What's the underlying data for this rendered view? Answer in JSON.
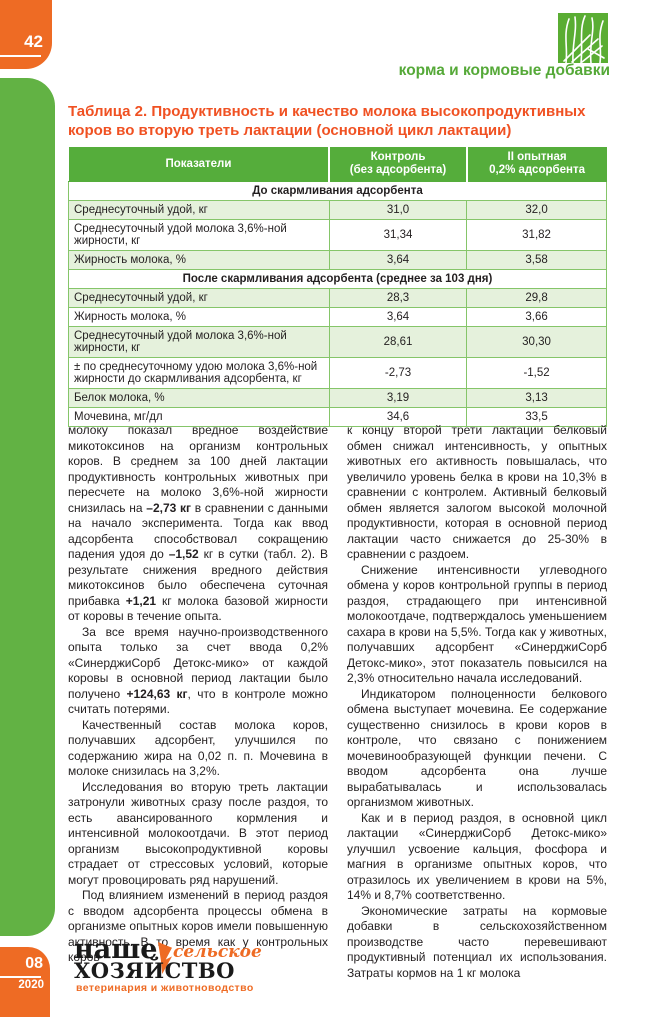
{
  "page": {
    "folio": "42",
    "issue": {
      "number": "08",
      "year": "2020"
    }
  },
  "header": {
    "rubric": "корма и кормовые добавки",
    "logo_icon": "grass-icon"
  },
  "colors": {
    "brand_orange": "#ee6b24",
    "title_orange": "#f05122",
    "brand_green": "#55ad3b",
    "sidebar_green": "#62b244",
    "row_light_green": "#e5f1dc"
  },
  "table": {
    "title": "Таблица 2. Продуктивность и качество молока высокопродуктивных коров во вторую треть лактации (основной цикл лактации)",
    "columns": [
      {
        "label": "Показатели",
        "sub": ""
      },
      {
        "label": "Контроль",
        "sub": "(без адсорбента)"
      },
      {
        "label": "II опытная",
        "sub": "0,2% адсорбента"
      }
    ],
    "sections": [
      {
        "header": "До скармливания адсорбента",
        "rows": [
          {
            "name": "Среднесуточный удой, кг",
            "control": "31,0",
            "experimental": "32,0"
          },
          {
            "name": "Среднесуточный удой молока 3,6%-ной жирности, кг",
            "control": "31,34",
            "experimental": "31,82"
          },
          {
            "name": "Жирность молока, %",
            "control": "3,64",
            "experimental": "3,58"
          }
        ]
      },
      {
        "header": "После скармливания адсорбента (среднее за 103 дня)",
        "rows": [
          {
            "name": "Среднесуточный удой, кг",
            "control": "28,3",
            "experimental": "29,8"
          },
          {
            "name": "Жирность молока, %",
            "control": "3,64",
            "experimental": "3,66"
          },
          {
            "name": "Среднесуточный удой молока 3,6%-ной жирности, кг",
            "control": "28,61",
            "experimental": "30,30"
          },
          {
            "name": "± по среднесуточному удою молока 3,6%-ной жирности до скармливания адсорбента, кг",
            "control": "-2,73",
            "experimental": "-1,52"
          },
          {
            "name": "Белок молока, %",
            "control": "3,19",
            "experimental": "3,13"
          },
          {
            "name": "Мочевина, мг/дл",
            "control": "34,6",
            "experimental": "33,5"
          }
        ]
      }
    ]
  },
  "article": {
    "left_column": [
      {
        "indent": false,
        "parts": [
          {
            "text": "молоку показал вредное воздействие микотоксинов на организм контрольных коров. В среднем за 100 дней лактации продуктивность контрольных животных при пересчете на молоко 3,6%-ной жирности снизилась на ",
            "bold": false
          },
          {
            "text": "–2,73 кг",
            "bold": true
          },
          {
            "text": " в сравнении с данными на начало эксперимента. Тогда как ввод адсорбента способствовал сокращению падения удоя до ",
            "bold": false
          },
          {
            "text": "–1,52",
            "bold": true
          },
          {
            "text": " кг в сутки (табл. 2). В результате снижения вредного действия микотоксинов было обеспечена суточная прибавка ",
            "bold": false
          },
          {
            "text": "+1,21",
            "bold": true
          },
          {
            "text": " кг молока базовой жирности от коровы в течение опыта.",
            "bold": false
          }
        ]
      },
      {
        "indent": true,
        "parts": [
          {
            "text": "За все время научно-производственного опыта только за счет ввода 0,2% «СинерджиСорб Детокс-мико» от каждой коровы в основной период лактации было получено ",
            "bold": false
          },
          {
            "text": "+124,63 кг",
            "bold": true
          },
          {
            "text": ", что в контроле можно считать потерями.",
            "bold": false
          }
        ]
      },
      {
        "indent": true,
        "parts": [
          {
            "text": "Качественный состав молока коров, получавших адсорбент, улучшился по содержанию жира на 0,02 п. п. Мочевина в молоке снизилась на 3,2%.",
            "bold": false
          }
        ]
      },
      {
        "indent": true,
        "parts": [
          {
            "text": "Исследования во вторую треть лактации затронули животных сразу после раздоя, то есть авансированного кормления и интенсивной молокоотдачи. В этот период организм высокопродуктивной коровы страдает от стрессовых условий, которые могут провоцировать ряд нарушений.",
            "bold": false
          }
        ]
      },
      {
        "indent": true,
        "parts": [
          {
            "text": "Под влиянием изменений в период раздоя с вводом адсорбента процессы обмена в организме опытных коров имели повышенную активность. В то время как у контрольных коров",
            "bold": false
          }
        ]
      }
    ],
    "right_column": [
      {
        "indent": false,
        "parts": [
          {
            "text": "к концу второй трети лактации белковый обмен снижал интенсивность, у опытных животных его активность повышалась, что увеличило уровень белка в крови на 10,3% в сравнении с контролем. Активный белковый обмен является залогом высокой молочной продуктивности, которая в основной период лактации часто снижается до 25-30% в сравнении с раздоем.",
            "bold": false
          }
        ]
      },
      {
        "indent": true,
        "parts": [
          {
            "text": "Снижение интенсивности углеводного обмена у коров контрольной группы в период раздоя, страдающего при интенсивной молокоотдаче, подтверждалось уменьшением сахара в крови на 5,5%. Тогда как у животных, получавших адсорбент «СинерджиСорб Детокс-мико», этот показатель повысился на 2,3% относительно начала исследований.",
            "bold": false
          }
        ]
      },
      {
        "indent": true,
        "parts": [
          {
            "text": "Индикатором полноценности белкового обмена выступает мочевина. Ее содержание существенно снизилось в крови коров в контроле, что связано с понижением мочевинообразующей функции печени. С вводом адсорбента она лучше вырабатывалась и использовалась организмом животных.",
            "bold": false
          }
        ]
      },
      {
        "indent": true,
        "parts": [
          {
            "text": "Как и в период раздоя, в основной цикл лактации «СинерджиСорб Детокс-мико» улучшил усвоение кальция, фосфора и магния в организме опытных коров, что отразилось их увеличением в крови на 5%, 14% и 8,7% соответственно.",
            "bold": false
          }
        ]
      },
      {
        "indent": true,
        "parts": [
          {
            "text": "Экономические затраты на кормовые добавки в сельскохозяйственном производстве часто перевешивают продуктивный потенциал их использования. Затраты кормов на 1 кг молока",
            "bold": false
          }
        ]
      }
    ]
  },
  "footer": {
    "logo": {
      "word1": "наше",
      "word2": "сельское",
      "word3": "ХОЗЯЙСТВО",
      "tagline": "ветеринария и животноводство"
    }
  }
}
